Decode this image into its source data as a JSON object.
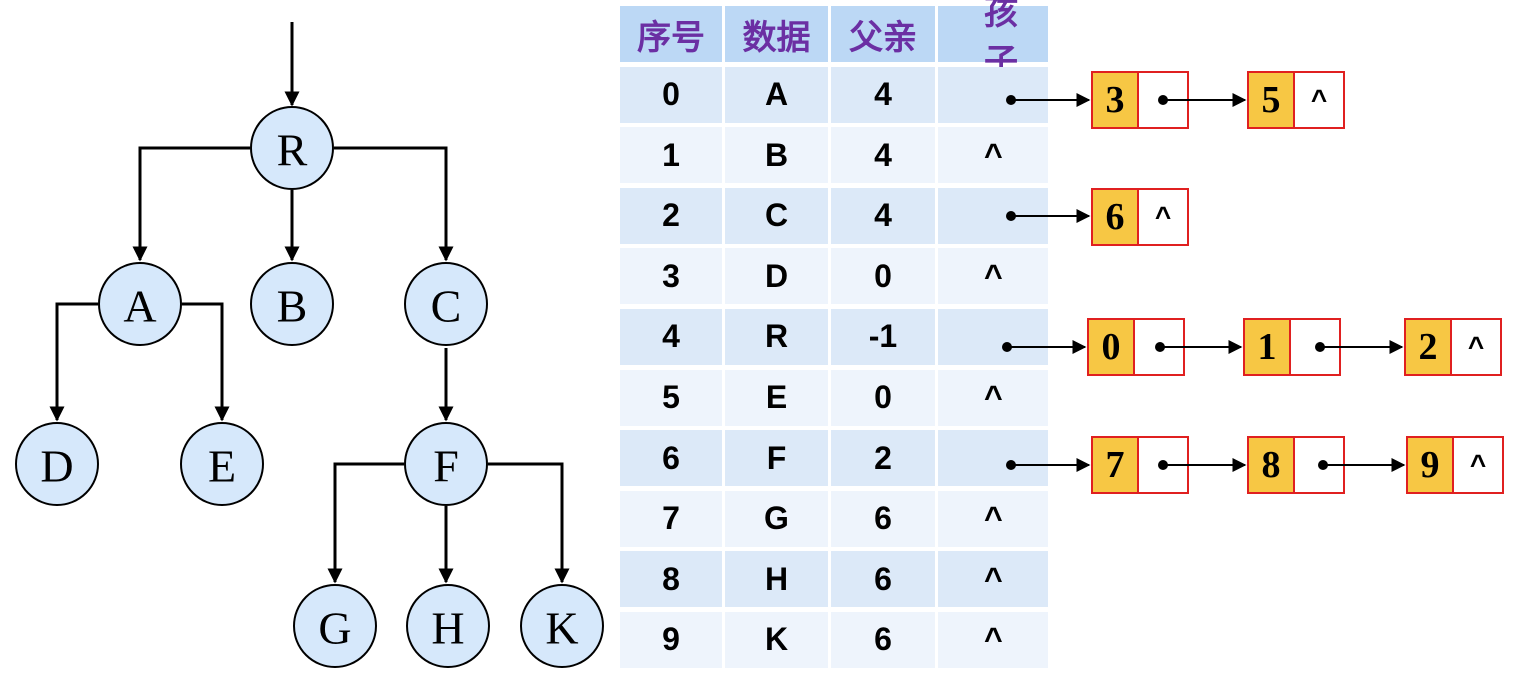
{
  "tree": {
    "nodes": [
      "R",
      "A",
      "B",
      "C",
      "D",
      "E",
      "F",
      "G",
      "H",
      "K"
    ]
  },
  "table": {
    "headers": [
      "序号",
      "数据",
      "父亲",
      "孩子"
    ],
    "rows": [
      {
        "index": "0",
        "data": "A",
        "parent": "4",
        "child": ""
      },
      {
        "index": "1",
        "data": "B",
        "parent": "4",
        "child": "^"
      },
      {
        "index": "2",
        "data": "C",
        "parent": "4",
        "child": ""
      },
      {
        "index": "3",
        "data": "D",
        "parent": "0",
        "child": "^"
      },
      {
        "index": "4",
        "data": "R",
        "parent": "-1",
        "child": ""
      },
      {
        "index": "5",
        "data": "E",
        "parent": "0",
        "child": "^"
      },
      {
        "index": "6",
        "data": "F",
        "parent": "2",
        "child": ""
      },
      {
        "index": "7",
        "data": "G",
        "parent": "6",
        "child": "^"
      },
      {
        "index": "8",
        "data": "H",
        "parent": "6",
        "child": "^"
      },
      {
        "index": "9",
        "data": "K",
        "parent": "6",
        "child": "^"
      }
    ]
  },
  "child_lists": [
    {
      "row": "0",
      "nodes": [
        {
          "index": "3",
          "next": ""
        },
        {
          "index": "5",
          "next": "^"
        }
      ]
    },
    {
      "row": "2",
      "nodes": [
        {
          "index": "6",
          "next": "^"
        }
      ]
    },
    {
      "row": "4",
      "nodes": [
        {
          "index": "0",
          "next": ""
        },
        {
          "index": "1",
          "next": ""
        },
        {
          "index": "2",
          "next": "^"
        }
      ]
    },
    {
      "row": "6",
      "nodes": [
        {
          "index": "7",
          "next": ""
        },
        {
          "index": "8",
          "next": ""
        },
        {
          "index": "9",
          "next": "^"
        }
      ]
    }
  ],
  "colors": {
    "node_fill": "#d6e8fb",
    "header_text": "#6b2fa3",
    "list_index_fill": "#f7c744",
    "list_border": "#e02020"
  }
}
